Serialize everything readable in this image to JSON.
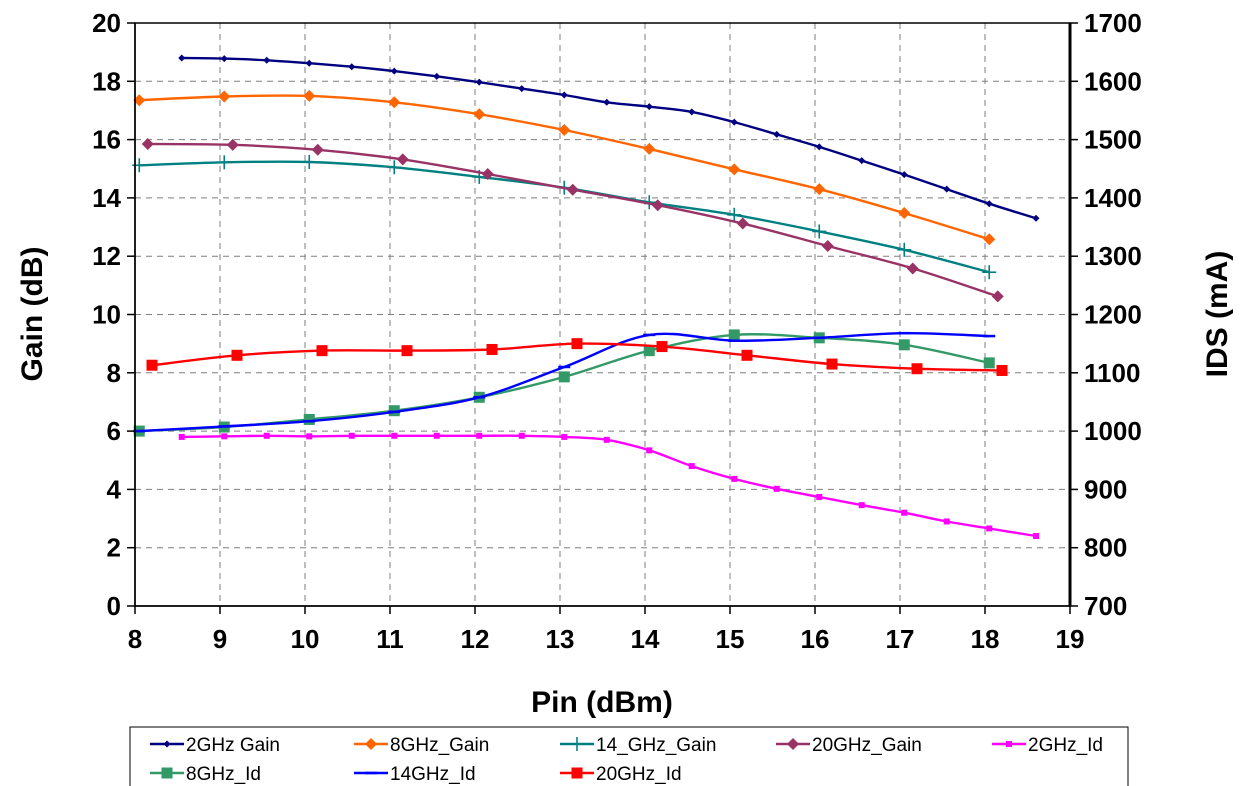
{
  "chart_data": {
    "type": "line",
    "xlabel": "Pin (dBm)",
    "ylabel": "Gain (dB)",
    "y2label": "IDS (mA)",
    "xlim": [
      8,
      19
    ],
    "ylim": [
      0,
      20
    ],
    "y2lim": [
      700,
      1700
    ],
    "x_ticks": [
      "8",
      "9",
      "10",
      "11",
      "12",
      "13",
      "14",
      "15",
      "16",
      "17",
      "18",
      "19"
    ],
    "y_ticks": [
      "0",
      "2",
      "4",
      "6",
      "8",
      "10",
      "12",
      "14",
      "16",
      "18",
      "20"
    ],
    "y2_ticks": [
      "700",
      "800",
      "900",
      "1000",
      "1100",
      "1200",
      "1300",
      "1400",
      "1500",
      "1600",
      "1700"
    ],
    "grid": true,
    "legend_position": "bottom",
    "series": [
      {
        "name": "2GHz Gain",
        "axis": "left",
        "color": "#000080",
        "marker": "diamond-small",
        "x": [
          8.55,
          9.05,
          9.55,
          10.05,
          10.55,
          11.05,
          11.55,
          12.05,
          12.55,
          13.05,
          13.55,
          14.05,
          14.55,
          15.05,
          15.55,
          16.05,
          16.55,
          17.05,
          17.55,
          18.05,
          18.6
        ],
        "y": [
          18.8,
          18.78,
          18.72,
          18.62,
          18.5,
          18.35,
          18.17,
          17.97,
          17.75,
          17.53,
          17.28,
          17.13,
          16.95,
          16.6,
          16.18,
          15.75,
          15.28,
          14.8,
          14.3,
          13.8,
          13.3
        ]
      },
      {
        "name": "8GHz_Gain",
        "axis": "left",
        "color": "#FF6600",
        "marker": "diamond",
        "x": [
          8.05,
          9.05,
          10.05,
          11.05,
          12.05,
          13.05,
          14.05,
          15.05,
          16.05,
          17.05,
          18.05
        ],
        "y": [
          17.35,
          17.48,
          17.5,
          17.28,
          16.87,
          16.33,
          15.68,
          14.98,
          14.3,
          13.48,
          12.58
        ]
      },
      {
        "name": "14_GHz_Gain",
        "axis": "left",
        "color": "#008080",
        "marker": "plus",
        "x": [
          8.05,
          9.05,
          10.05,
          11.05,
          12.05,
          13.05,
          14.05,
          15.05,
          16.05,
          17.05,
          18.05
        ],
        "y": [
          15.12,
          15.22,
          15.23,
          15.05,
          14.72,
          14.35,
          13.85,
          13.42,
          12.85,
          12.22,
          11.45
        ]
      },
      {
        "name": "20GHz_Gain",
        "axis": "left",
        "color": "#993366",
        "marker": "diamond",
        "x": [
          8.15,
          9.15,
          10.15,
          11.15,
          12.15,
          13.15,
          14.15,
          15.15,
          16.15,
          17.15,
          18.15
        ],
        "y": [
          15.85,
          15.82,
          15.65,
          15.32,
          14.82,
          14.28,
          13.75,
          13.12,
          12.35,
          11.58,
          10.62
        ]
      },
      {
        "name": "2GHz_Id",
        "axis": "right",
        "color": "#FF00FF",
        "marker": "square-small",
        "x": [
          8.55,
          9.05,
          9.55,
          10.05,
          10.55,
          11.05,
          11.55,
          12.05,
          12.55,
          13.05,
          13.55,
          14.05,
          14.55,
          15.05,
          15.55,
          16.05,
          16.55,
          17.05,
          17.55,
          18.05,
          18.6
        ],
        "y": [
          990,
          991,
          992,
          991,
          992,
          992,
          992,
          992,
          992,
          990,
          985,
          967,
          940,
          918,
          901,
          887,
          873,
          860,
          845,
          833,
          820
        ]
      },
      {
        "name": "8GHz_Id",
        "axis": "right",
        "color": "#339966",
        "marker": "square",
        "x": [
          8.05,
          9.05,
          10.05,
          11.05,
          12.05,
          13.05,
          14.05,
          15.05,
          16.05,
          17.05,
          18.05
        ],
        "y": [
          1000,
          1007,
          1020,
          1035,
          1058,
          1093,
          1138,
          1165,
          1160,
          1148,
          1117
        ]
      },
      {
        "name": "14GHz_Id",
        "axis": "right",
        "color": "#0000FF",
        "marker": "dash",
        "x": [
          8.05,
          9.05,
          10.05,
          11.05,
          12.05,
          13.05,
          14.05,
          15.05,
          16.05,
          17.05,
          18.05
        ],
        "y": [
          1000,
          1008,
          1017,
          1033,
          1058,
          1110,
          1165,
          1155,
          1160,
          1168,
          1163
        ]
      },
      {
        "name": "20GHz_Id",
        "axis": "right",
        "color": "#FF0000",
        "marker": "square",
        "x": [
          8.2,
          9.2,
          10.2,
          11.2,
          12.2,
          13.2,
          14.2,
          15.2,
          16.2,
          17.2,
          18.2
        ],
        "y": [
          1113,
          1130,
          1138,
          1138,
          1140,
          1150,
          1145,
          1130,
          1115,
          1107,
          1104
        ]
      }
    ]
  }
}
